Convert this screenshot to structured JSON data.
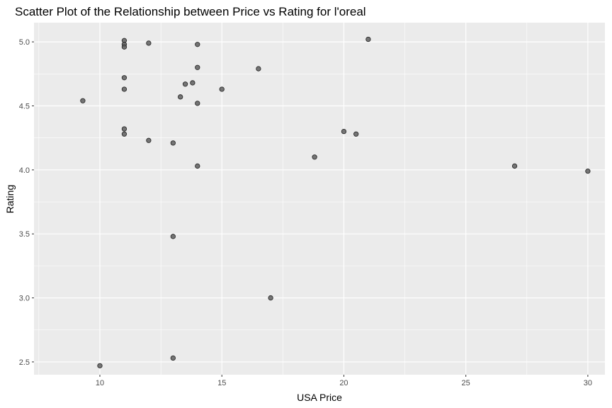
{
  "chart_data": {
    "type": "scatter",
    "title": "Scatter Plot of the Relationship between Price vs Rating for l'oreal",
    "xlabel": "USA Price",
    "ylabel": "Rating",
    "xlim": [
      7.3,
      30.7
    ],
    "ylim": [
      2.4,
      5.15
    ],
    "xticks": [
      10,
      15,
      20,
      25,
      30
    ],
    "yticks": [
      2.5,
      3.0,
      3.5,
      4.0,
      4.5,
      5.0
    ],
    "xtick_labels": [
      "10",
      "15",
      "20",
      "25",
      "30"
    ],
    "ytick_labels": [
      "2.5",
      "3.0",
      "3.5",
      "4.0",
      "4.5",
      "5.0"
    ],
    "grid": true,
    "colors": {
      "panel": "#ebebeb",
      "grid_major": "#ffffff",
      "point_fill": "#5f5f5f",
      "point_stroke": "#2b2b2b"
    },
    "x": [
      9.3,
      10.0,
      11.0,
      11.0,
      11.0,
      11.0,
      11.0,
      11.0,
      11.0,
      12.0,
      12.0,
      13.0,
      13.0,
      13.0,
      13.3,
      13.5,
      13.8,
      14.0,
      14.0,
      14.0,
      14.0,
      15.0,
      16.5,
      17.0,
      18.8,
      20.0,
      20.5,
      21.0,
      27.0,
      30.0
    ],
    "y": [
      4.54,
      2.47,
      5.01,
      4.98,
      4.96,
      4.72,
      4.63,
      4.32,
      4.28,
      4.99,
      4.23,
      4.21,
      3.48,
      2.53,
      4.57,
      4.67,
      4.68,
      4.98,
      4.8,
      4.52,
      4.03,
      4.63,
      4.79,
      3.0,
      4.1,
      4.3,
      4.28,
      5.02,
      4.03,
      3.99
    ]
  }
}
